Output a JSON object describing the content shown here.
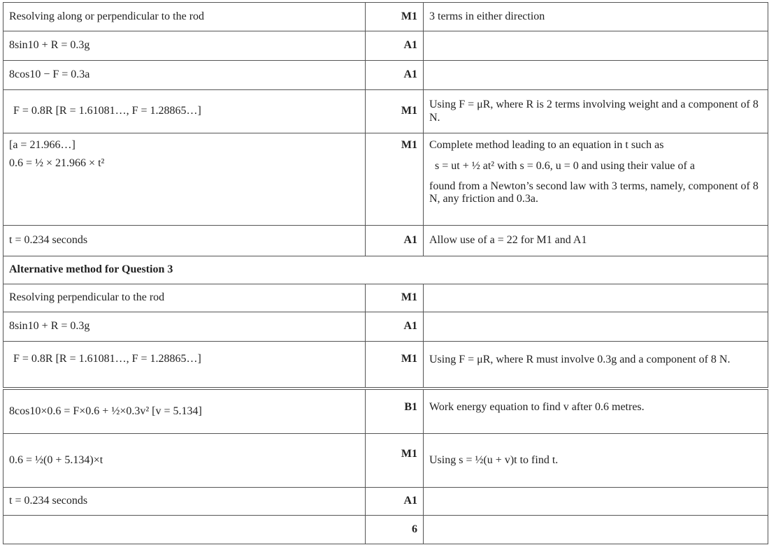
{
  "rows": [
    {
      "working": "Resolving along or perpendicular to the rod",
      "mark": "M1",
      "note": "3 terms in either direction"
    },
    {
      "working": "8sin10 + R = 0.3g",
      "mark": "A1",
      "note": ""
    },
    {
      "working": "8cos10 − F = 0.3a",
      "mark": "A1",
      "note": ""
    },
    {
      "working": "F = 0.8R     [R = 1.61081…, F = 1.28865…]",
      "mark": "M1",
      "note": "Using F = μR, where R is 2 terms involving weight and a component of  8 N."
    },
    {
      "working_line1": "[a = 21.966…]",
      "working_line2": "0.6 = ½ × 21.966 × t²",
      "mark": "M1",
      "note_line1": "Complete method leading to an equation in t such as",
      "note_line2": "s = ut + ½ at² with s = 0.6, u = 0 and using their value of a",
      "note_line3": "found from a Newton’s second law with 3 terms, namely, component of 8 N, any friction and 0.3a."
    },
    {
      "working": "t = 0.234  seconds",
      "mark": "A1",
      "note": "Allow use of a = 22 for M1 and A1"
    }
  ],
  "alt_header": "Alternative method for Question 3",
  "alt_rows": [
    {
      "working": "Resolving perpendicular to the rod",
      "mark": "M1",
      "note": ""
    },
    {
      "working": "8sin10 + R = 0.3g",
      "mark": "A1",
      "note": ""
    },
    {
      "working": "F = 0.8R  [R = 1.61081…, F = 1.28865…]",
      "mark": "M1",
      "note": "Using F = μR, where R must involve 0.3g and a component of 8 N."
    },
    {
      "working": "8cos10×0.6 = F×0.6 + ½×0.3v²   [v = 5.134]",
      "mark": "B1",
      "note": "Work energy equation to find v after 0.6 metres."
    },
    {
      "working": "0.6 = ½(0 + 5.134)×t",
      "mark": "M1",
      "note": "Using s = ½(u + v)t to find t."
    },
    {
      "working": "t = 0.234  seconds",
      "mark": "A1",
      "note": ""
    }
  ],
  "total": "6"
}
